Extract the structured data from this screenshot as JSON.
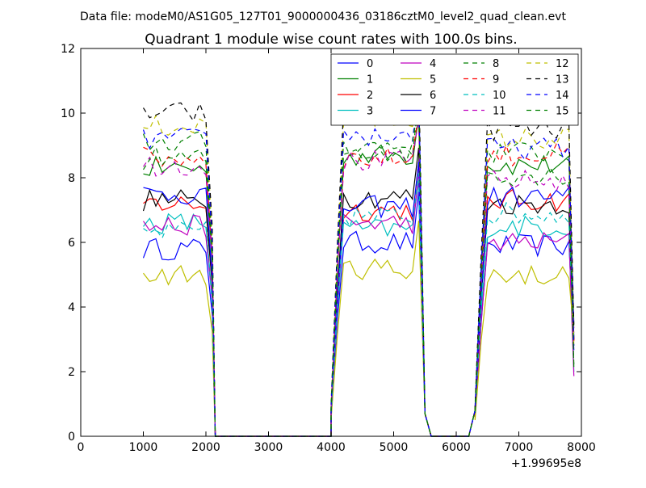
{
  "suptitle": "Data file: modeM0/AS1G05_127T01_9000000436_03186cztM0_level2_quad_clean.evt",
  "chart_data": {
    "type": "line",
    "title": "Quadrant 1 module wise count rates with 100.0s bins.",
    "xlabel": "",
    "ylabel": "",
    "x_offset_label": "+1.99695e8",
    "xlim": [
      0,
      8000
    ],
    "ylim": [
      0,
      12
    ],
    "xticks": [
      "0",
      "1000",
      "2000",
      "3000",
      "4000",
      "5000",
      "6000",
      "7000",
      "8000"
    ],
    "yticks": [
      "0",
      "2",
      "4",
      "6",
      "8",
      "10",
      "12"
    ],
    "grid": false,
    "legend_position": "top-right",
    "legend_columns": 4,
    "segments": [
      {
        "x_start": 1000,
        "n": 11
      },
      {
        "x_start": 4100,
        "n": 14
      },
      {
        "x_start": 6400,
        "n": 15
      }
    ],
    "series": [
      {
        "name": "0",
        "color": "#0000ff",
        "dash": "solid",
        "levels": [
          5.8,
          6.0,
          5.9
        ]
      },
      {
        "name": "1",
        "color": "#008000",
        "dash": "solid",
        "levels": [
          8.3,
          8.7,
          8.4
        ]
      },
      {
        "name": "2",
        "color": "#ff0000",
        "dash": "solid",
        "levels": [
          7.2,
          7.0,
          7.3
        ]
      },
      {
        "name": "3",
        "color": "#00bfbf",
        "dash": "solid",
        "levels": [
          6.6,
          6.4,
          6.5
        ]
      },
      {
        "name": "4",
        "color": "#bf00bf",
        "dash": "solid",
        "levels": [
          6.5,
          6.6,
          6.0
        ]
      },
      {
        "name": "5",
        "color": "#bfbf00",
        "dash": "solid",
        "levels": [
          5.0,
          5.2,
          5.0
        ]
      },
      {
        "name": "6",
        "color": "#000000",
        "dash": "solid",
        "levels": [
          7.3,
          7.4,
          7.2
        ]
      },
      {
        "name": "7",
        "color": "#0000ff",
        "dash": "solid",
        "levels": [
          7.5,
          7.1,
          7.4
        ]
      },
      {
        "name": "8",
        "color": "#008000",
        "dash": "dashed",
        "levels": [
          9.1,
          9.0,
          8.8
        ]
      },
      {
        "name": "9",
        "color": "#ff0000",
        "dash": "dashed",
        "levels": [
          8.6,
          8.6,
          8.7
        ]
      },
      {
        "name": "10",
        "color": "#00bfbf",
        "dash": "dashed",
        "levels": [
          6.3,
          6.8,
          6.9
        ]
      },
      {
        "name": "11",
        "color": "#bf00bf",
        "dash": "dashed",
        "levels": [
          8.4,
          8.5,
          7.9
        ]
      },
      {
        "name": "12",
        "color": "#bfbf00",
        "dash": "dashed",
        "levels": [
          9.6,
          9.8,
          9.2
        ]
      },
      {
        "name": "13",
        "color": "#000000",
        "dash": "dashed",
        "levels": [
          10.0,
          9.9,
          9.5
        ]
      },
      {
        "name": "14",
        "color": "#0000ff",
        "dash": "dashed",
        "levels": [
          9.2,
          9.3,
          8.9
        ]
      },
      {
        "name": "15",
        "color": "#008000",
        "dash": "dashed",
        "levels": [
          8.6,
          8.8,
          8.1
        ]
      }
    ]
  }
}
